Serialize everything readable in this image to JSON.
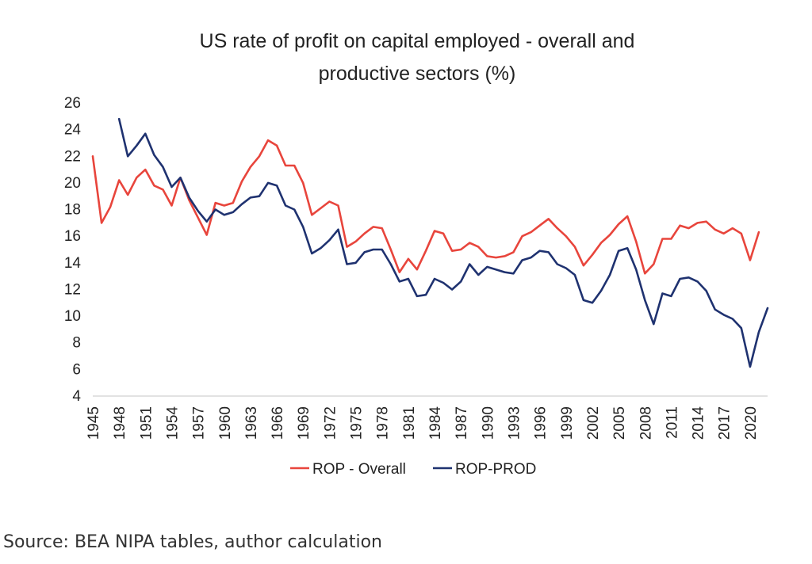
{
  "chart_data": {
    "type": "line",
    "title_line1": "US rate of profit on capital employed - overall and",
    "title_line2": "productive sectors (%)",
    "xlabel": "",
    "ylabel": "",
    "ylim": [
      4,
      26
    ],
    "yticks": [
      4,
      6,
      8,
      10,
      12,
      14,
      16,
      18,
      20,
      22,
      24,
      26
    ],
    "xticks": [
      1945,
      1948,
      1951,
      1954,
      1957,
      1960,
      1963,
      1966,
      1969,
      1972,
      1975,
      1978,
      1981,
      1984,
      1987,
      1990,
      1993,
      1996,
      1999,
      2002,
      2005,
      2008,
      2011,
      2014,
      2017,
      2020
    ],
    "grid": false,
    "legend_position": "bottom",
    "x": [
      1945,
      1946,
      1947,
      1948,
      1949,
      1950,
      1951,
      1952,
      1953,
      1954,
      1955,
      1956,
      1957,
      1958,
      1959,
      1960,
      1961,
      1962,
      1963,
      1964,
      1965,
      1966,
      1967,
      1968,
      1969,
      1970,
      1971,
      1972,
      1973,
      1974,
      1975,
      1976,
      1977,
      1978,
      1979,
      1980,
      1981,
      1982,
      1983,
      1984,
      1985,
      1986,
      1987,
      1988,
      1989,
      1990,
      1991,
      1992,
      1993,
      1994,
      1995,
      1996,
      1997,
      1998,
      1999,
      2000,
      2001,
      2002,
      2003,
      2004,
      2005,
      2006,
      2007,
      2008,
      2009,
      2010,
      2011,
      2012,
      2013,
      2014,
      2015,
      2016,
      2017,
      2018,
      2019,
      2020,
      2021,
      2022
    ],
    "series": [
      {
        "name": "ROP - Overall",
        "color": "#e8453c",
        "values": [
          22.0,
          17.0,
          18.2,
          20.2,
          19.1,
          20.4,
          21.0,
          19.8,
          19.5,
          18.3,
          20.4,
          18.7,
          17.4,
          16.1,
          18.5,
          18.3,
          18.5,
          20.1,
          21.2,
          22.0,
          23.2,
          22.8,
          21.3,
          21.3,
          20.0,
          17.6,
          18.1,
          18.6,
          18.3,
          15.2,
          15.6,
          16.2,
          16.7,
          16.6,
          15.0,
          13.3,
          14.3,
          13.5,
          14.9,
          16.4,
          16.2,
          14.9,
          15.0,
          15.5,
          15.2,
          14.5,
          14.4,
          14.5,
          14.8,
          16.0,
          16.3,
          16.8,
          17.3,
          16.6,
          16.0,
          15.2,
          13.8,
          14.6,
          15.5,
          16.1,
          16.9,
          17.5,
          15.6,
          13.2,
          13.9,
          15.8,
          15.8,
          16.8,
          16.6,
          17.0,
          17.1,
          16.5,
          16.2,
          16.6,
          16.2,
          14.2,
          16.3,
          null
        ]
      },
      {
        "name": "ROP-PROD",
        "color": "#1f3270",
        "values": [
          null,
          null,
          null,
          24.8,
          22.0,
          22.8,
          23.7,
          22.1,
          21.2,
          19.7,
          20.4,
          18.9,
          17.9,
          17.1,
          18.0,
          17.6,
          17.8,
          18.4,
          18.9,
          19.0,
          20.0,
          19.8,
          18.3,
          18.0,
          16.7,
          14.7,
          15.1,
          15.7,
          16.5,
          13.9,
          14.0,
          14.8,
          15.0,
          15.0,
          13.9,
          12.6,
          12.8,
          11.5,
          11.6,
          12.8,
          12.5,
          12.0,
          12.6,
          13.9,
          13.1,
          13.7,
          13.5,
          13.3,
          13.2,
          14.2,
          14.4,
          14.9,
          14.8,
          13.9,
          13.6,
          13.1,
          11.2,
          11.0,
          11.9,
          13.1,
          14.9,
          15.1,
          13.5,
          11.2,
          9.4,
          11.7,
          11.5,
          12.8,
          12.9,
          12.6,
          11.9,
          10.5,
          10.1,
          9.8,
          9.1,
          6.2,
          8.8,
          10.6
        ]
      }
    ]
  },
  "source_note": "Source: BEA NIPA tables, author calculation"
}
